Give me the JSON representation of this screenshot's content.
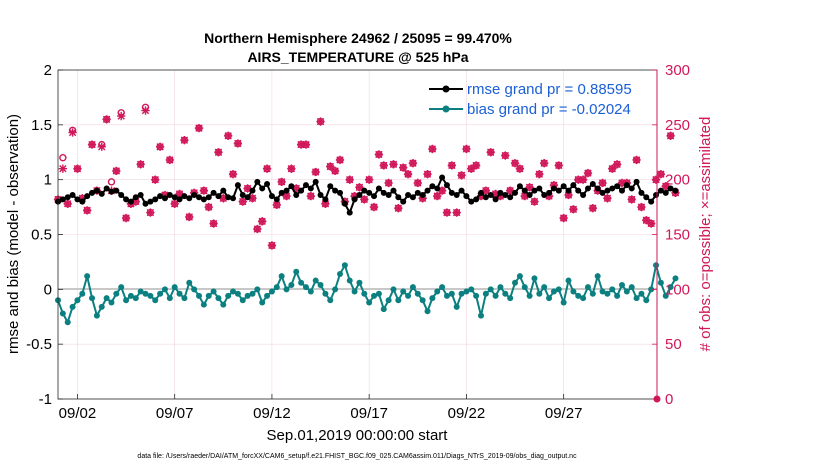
{
  "chart_data": {
    "type": "line",
    "title_line1": "Northern Hemisphere 24962 / 25095 = 99.470%",
    "title_line2": "AIRS_TEMPERATURE @ 525 hPa",
    "ylabel": "rmse and bias (model - observation)",
    "ylabel_right": "# of obs: o=possible; ×=assimilated",
    "xlabel": "Sep.01,2019 00:00:00 start",
    "footer": "data file: /Users/raeder/DAI/ATM_forcXX/CAM6_setup/f.e21.FHIST_BGC.f09_025.CAM6assim.011/Diags_NTrS_2019-09/obs_diag_output.nc",
    "ylim": [
      -1,
      2
    ],
    "ylim_right": [
      0,
      300
    ],
    "yticks": [
      "-1",
      "-0.5",
      "0",
      "0.5",
      "1",
      "1.5",
      "2"
    ],
    "yticks_right": [
      "0",
      "50",
      "100",
      "150",
      "200",
      "250",
      "300"
    ],
    "xticks": [
      "09/02",
      "09/07",
      "09/12",
      "09/17",
      "09/22",
      "09/27"
    ],
    "xtick_days": [
      2,
      7,
      12,
      17,
      22,
      27
    ],
    "xlim_days": [
      1,
      31.8
    ],
    "legend": [
      {
        "name": "rmse grand pr = 0.88595",
        "color": "#000000"
      },
      {
        "name": "bias grand pr = -0.02024",
        "color": "#0c8080"
      }
    ],
    "colors": {
      "rmse": "#000000",
      "bias": "#0c8080",
      "obs": "#d0185a",
      "zero_line": "#c8c8c8"
    },
    "obs_base": [
      182,
      210,
      178,
      243,
      210,
      183,
      172,
      232,
      190,
      230,
      255,
      190,
      208,
      258,
      165,
      178,
      180,
      214,
      263,
      170,
      200,
      230,
      186,
      218,
      178,
      187,
      236,
      166,
      188,
      247,
      190,
      175,
      160,
      225,
      183,
      240,
      205,
      233,
      180,
      192,
      183,
      155,
      162,
      210,
      140,
      177,
      198,
      185,
      210,
      192,
      232,
      232,
      185,
      207,
      253,
      178,
      212,
      208,
      218,
      180,
      200,
      185,
      193,
      182,
      200,
      175,
      223,
      213,
      197,
      214,
      174,
      211,
      205,
      215,
      197,
      183,
      205,
      228,
      185,
      190,
      170,
      213,
      170,
      204,
      228,
      210,
      213,
      185,
      190,
      225,
      187,
      185,
      222,
      190,
      215,
      210,
      185,
      193,
      180,
      205,
      215,
      185,
      195,
      213,
      165,
      186,
      173,
      200,
      200,
      206,
      174,
      190,
      197,
      183,
      210,
      214,
      197,
      197,
      182,
      218,
      175,
      163,
      160,
      200,
      205,
      194,
      240,
      188
    ],
    "obs_sigma": [
      0,
      10,
      0,
      2,
      0,
      0,
      0,
      0,
      0,
      2,
      0,
      8,
      0,
      3,
      0,
      0,
      0,
      0,
      3,
      0,
      0,
      0,
      0,
      0,
      0,
      0,
      0,
      0,
      0,
      0,
      0,
      0,
      0,
      0,
      0,
      0,
      0,
      0,
      0,
      0,
      0,
      0,
      0,
      0,
      0,
      0,
      0,
      0,
      0,
      0,
      0,
      0,
      0,
      0,
      0,
      0,
      0,
      0,
      0,
      0,
      0,
      0,
      0,
      0,
      0,
      0,
      0,
      0,
      0,
      0,
      0,
      0,
      0,
      0,
      0,
      0,
      0,
      0,
      0,
      0,
      0,
      0,
      0,
      0,
      0,
      0,
      0,
      0,
      0,
      0,
      0,
      0,
      0,
      0,
      0,
      0,
      0,
      0,
      0,
      0,
      0,
      0,
      0,
      0,
      0,
      0,
      0,
      0,
      0,
      0,
      0,
      0,
      0,
      0,
      0,
      0,
      0,
      0,
      0,
      0,
      0,
      0,
      0,
      0,
      0,
      0,
      0,
      0
    ],
    "rmse": [
      0.8,
      0.82,
      0.84,
      0.86,
      0.82,
      0.8,
      0.85,
      0.88,
      0.9,
      0.87,
      0.92,
      0.89,
      0.9,
      0.86,
      0.82,
      0.8,
      0.84,
      0.86,
      0.78,
      0.8,
      0.82,
      0.85,
      0.83,
      0.86,
      0.84,
      0.82,
      0.85,
      0.83,
      0.86,
      0.84,
      0.82,
      0.84,
      0.88,
      0.85,
      0.9,
      0.84,
      0.83,
      0.95,
      0.86,
      0.84,
      0.9,
      0.98,
      0.92,
      0.96,
      0.85,
      0.82,
      0.88,
      0.9,
      0.94,
      0.86,
      0.9,
      0.95,
      0.92,
      0.98,
      0.86,
      0.82,
      0.94,
      0.9,
      0.88,
      0.78,
      0.7,
      0.82,
      0.86,
      0.9,
      0.88,
      0.85,
      0.92,
      0.88,
      0.86,
      0.9,
      0.84,
      0.8,
      0.86,
      0.84,
      0.88,
      0.86,
      0.9,
      0.94,
      0.92,
      1.02,
      0.95,
      0.88,
      0.86,
      0.9,
      0.85,
      0.8,
      0.82,
      0.88,
      0.84,
      0.86,
      0.82,
      0.88,
      0.86,
      0.84,
      0.88,
      0.94,
      0.9,
      0.86,
      0.9,
      0.92,
      0.86,
      0.88,
      0.92,
      0.9,
      0.94,
      0.9,
      0.95,
      0.9,
      0.86,
      0.92,
      0.96,
      0.92,
      0.88,
      0.9,
      0.92,
      0.94,
      0.9,
      0.95,
      0.92,
      0.98,
      0.88,
      0.84,
      0.8,
      0.86,
      0.9,
      0.88,
      0.92,
      0.9
    ],
    "bias": [
      -0.1,
      -0.22,
      -0.3,
      -0.16,
      -0.1,
      -0.04,
      0.12,
      -0.08,
      -0.24,
      -0.16,
      -0.08,
      -0.12,
      -0.04,
      0.02,
      -0.1,
      -0.06,
      -0.08,
      -0.02,
      -0.04,
      -0.06,
      -0.1,
      -0.04,
      0.0,
      -0.08,
      0.02,
      -0.04,
      -0.08,
      0.06,
      0.0,
      -0.06,
      -0.14,
      -0.06,
      -0.02,
      -0.08,
      -0.14,
      -0.06,
      -0.02,
      -0.04,
      -0.1,
      -0.06,
      -0.04,
      0.0,
      -0.12,
      -0.06,
      -0.02,
      0.02,
      0.12,
      0.0,
      0.04,
      0.16,
      0.06,
      0.02,
      -0.02,
      0.08,
      0.04,
      -0.04,
      -0.1,
      0.0,
      0.14,
      0.22,
      0.08,
      -0.02,
      0.06,
      -0.04,
      -0.12,
      -0.06,
      -0.04,
      -0.18,
      -0.1,
      0.0,
      -0.1,
      -0.02,
      -0.06,
      0.02,
      -0.04,
      -0.1,
      -0.2,
      -0.08,
      -0.02,
      0.02,
      -0.06,
      -0.04,
      -0.16,
      -0.04,
      -0.02,
      0.0,
      -0.06,
      -0.24,
      -0.04,
      0.0,
      -0.06,
      0.02,
      -0.04,
      -0.08,
      0.06,
      0.12,
      0.02,
      -0.06,
      0.1,
      -0.04,
      0.02,
      -0.08,
      -0.02,
      0.0,
      -0.12,
      0.08,
      -0.02,
      -0.06,
      -0.08,
      0.02,
      -0.04,
      0.12,
      -0.02,
      -0.04,
      0.0,
      -0.06,
      0.04,
      -0.02,
      0.02,
      -0.08,
      -0.04,
      -0.1,
      0.0,
      0.22,
      0.06,
      -0.06,
      0.02,
      0.1
    ]
  }
}
